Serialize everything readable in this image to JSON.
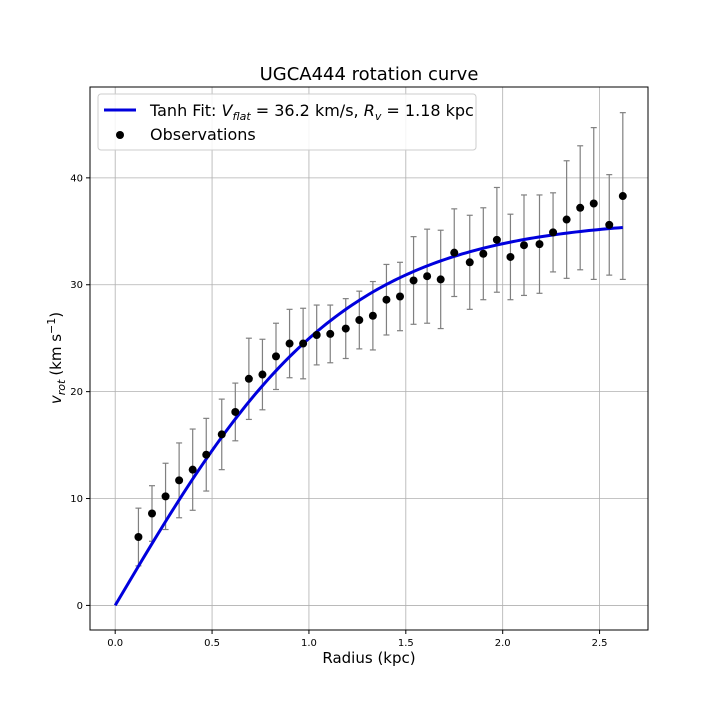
{
  "chart_data": {
    "type": "scatter",
    "title": "UGCA444 rotation curve",
    "xlabel": "Radius (kpc)",
    "ylabel": {
      "base": "v",
      "sub": "rot",
      "units": "(km s",
      "sup": "−1",
      "close": ")"
    },
    "xlim": [
      -0.13,
      2.75
    ],
    "ylim": [
      -2.3,
      48.5
    ],
    "xticks": [
      0.0,
      0.5,
      1.0,
      1.5,
      2.0,
      2.5
    ],
    "xtick_labels": [
      "0.0",
      "0.5",
      "1.0",
      "1.5",
      "2.0",
      "2.5"
    ],
    "yticks": [
      0,
      10,
      20,
      30,
      40
    ],
    "ytick_labels": [
      "0",
      "10",
      "20",
      "30",
      "40"
    ],
    "grid": true,
    "legend_placement": "top-left",
    "fit": {
      "name_prefix": "Tanh Fit: ",
      "vflat_label": "V",
      "vflat_sub": "flat",
      "vflat_value": " = 36.2 km/s, ",
      "rv_label": "R",
      "rv_sub": "v",
      "rv_value": " = 1.18 kpc",
      "vflat": 36.2,
      "rv": 1.18,
      "x_range": [
        0.0,
        2.62
      ],
      "color": "#0000dd"
    },
    "observations": {
      "name": "Observations",
      "color": "#000000",
      "errorbar_color": "#808080",
      "x": [
        0.12,
        0.19,
        0.26,
        0.33,
        0.4,
        0.47,
        0.55,
        0.62,
        0.69,
        0.76,
        0.83,
        0.9,
        0.97,
        1.04,
        1.11,
        1.19,
        1.26,
        1.33,
        1.4,
        1.47,
        1.54,
        1.61,
        1.68,
        1.75,
        1.83,
        1.9,
        1.97,
        2.04,
        2.11,
        2.19,
        2.26,
        2.33,
        2.4,
        2.47,
        2.55,
        2.62
      ],
      "y": [
        6.4,
        8.6,
        10.2,
        11.7,
        12.7,
        14.1,
        16.0,
        18.1,
        21.2,
        21.6,
        23.3,
        24.5,
        24.5,
        25.3,
        25.4,
        25.9,
        26.7,
        27.1,
        28.6,
        28.9,
        30.4,
        30.8,
        30.5,
        33.0,
        32.1,
        32.9,
        34.2,
        32.6,
        33.7,
        33.8,
        34.9,
        36.1,
        37.2,
        37.6,
        35.6,
        38.3
      ],
      "err": [
        2.7,
        2.6,
        3.1,
        3.5,
        3.8,
        3.4,
        3.3,
        2.7,
        3.8,
        3.3,
        3.1,
        3.2,
        3.3,
        2.8,
        2.7,
        2.8,
        2.7,
        3.2,
        3.3,
        3.2,
        4.1,
        4.4,
        4.6,
        4.1,
        4.4,
        4.3,
        4.9,
        4.0,
        4.7,
        4.6,
        3.7,
        5.5,
        5.8,
        7.1,
        4.7,
        7.8
      ]
    }
  }
}
